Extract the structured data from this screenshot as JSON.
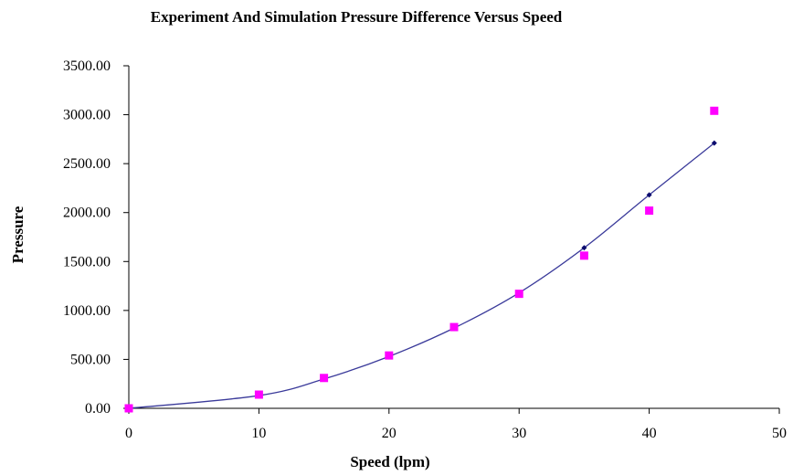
{
  "chart_data": {
    "type": "scatter",
    "title": "Experiment And Simulation Pressure Difference Versus Speed",
    "xlabel": "Speed (lpm)",
    "ylabel": "Pressure",
    "xlim": [
      0,
      50
    ],
    "ylim": [
      0,
      3500
    ],
    "x_ticks": [
      "0",
      "10",
      "20",
      "30",
      "40",
      "50"
    ],
    "y_ticks": [
      "0.00",
      "500.00",
      "1000.00",
      "1500.00",
      "2000.00",
      "2500.00",
      "3000.00",
      "3500.00"
    ],
    "grid": false,
    "legend": "none",
    "series": [
      {
        "style": "line-with-markers",
        "marker": "diamond",
        "color": "#3a3a9a",
        "marker_color": "#0b0b6e",
        "x": [
          0,
          10,
          15,
          20,
          25,
          30,
          35,
          40,
          45
        ],
        "y": [
          0,
          130,
          300,
          530,
          820,
          1180,
          1640,
          2180,
          2710
        ]
      },
      {
        "style": "markers",
        "marker": "square",
        "color": "#ff00ff",
        "x": [
          0,
          10,
          15,
          20,
          25,
          30,
          35,
          40,
          45
        ],
        "y": [
          0,
          140,
          310,
          540,
          830,
          1170,
          1560,
          2020,
          3040
        ]
      }
    ]
  }
}
